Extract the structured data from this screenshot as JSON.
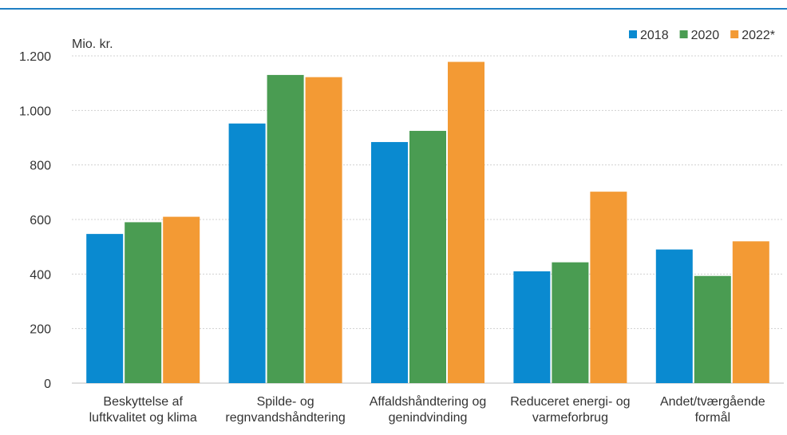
{
  "chart_data": {
    "type": "bar",
    "title": "",
    "ylabel": "Mio. kr.",
    "xlabel": "",
    "categories": [
      [
        "Beskyttelse af",
        "luftkvalitet og klima"
      ],
      [
        "Spilde- og",
        "regnvandshåndtering"
      ],
      [
        "Affaldshåndtering og",
        "genindvinding"
      ],
      [
        "Reduceret energi- og",
        "varmeforbrug"
      ],
      [
        "Andet/tværgående",
        "formål"
      ]
    ],
    "series": [
      {
        "name": "2018",
        "color": "#0a8ad0",
        "values": [
          547,
          952,
          884,
          410,
          490
        ]
      },
      {
        "name": "2020",
        "color": "#4a9c52",
        "values": [
          590,
          1130,
          925,
          443,
          393
        ]
      },
      {
        "name": "2022*",
        "color": "#f39a34",
        "values": [
          610,
          1122,
          1178,
          702,
          520
        ]
      }
    ],
    "ylim": [
      0,
      1200
    ],
    "yticks": [
      0,
      200,
      400,
      600,
      800,
      1000,
      1200
    ],
    "ytick_labels": [
      "0",
      "200",
      "400",
      "600",
      "800",
      "1.000",
      "1.200"
    ],
    "grid": true,
    "legend": "top-right"
  }
}
